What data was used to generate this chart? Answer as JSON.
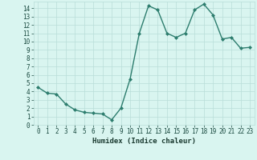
{
  "x": [
    0,
    1,
    2,
    3,
    4,
    5,
    6,
    7,
    8,
    9,
    10,
    11,
    12,
    13,
    14,
    15,
    16,
    17,
    18,
    19,
    20,
    21,
    22,
    23
  ],
  "y": [
    4.5,
    3.8,
    3.7,
    2.5,
    1.8,
    1.5,
    1.4,
    1.3,
    0.6,
    2.0,
    5.5,
    11.0,
    14.3,
    13.8,
    11.0,
    10.5,
    11.0,
    13.8,
    14.5,
    13.2,
    10.3,
    10.5,
    9.2,
    9.3
  ],
  "xlabel": "Humidex (Indice chaleur)",
  "xlim": [
    -0.5,
    23.5
  ],
  "ylim": [
    0,
    14.8
  ],
  "yticks": [
    0,
    1,
    2,
    3,
    4,
    5,
    6,
    7,
    8,
    9,
    10,
    11,
    12,
    13,
    14
  ],
  "xticks": [
    0,
    1,
    2,
    3,
    4,
    5,
    6,
    7,
    8,
    9,
    10,
    11,
    12,
    13,
    14,
    15,
    16,
    17,
    18,
    19,
    20,
    21,
    22,
    23
  ],
  "line_color": "#2d7d6e",
  "marker": "D",
  "marker_size": 2,
  "bg_color": "#d9f5f0",
  "grid_color": "#b8ddd8",
  "tick_color": "#1a4a40",
  "label_color": "#1a3a30",
  "font_size_ticks": 5.5,
  "font_size_xlabel": 6.5
}
